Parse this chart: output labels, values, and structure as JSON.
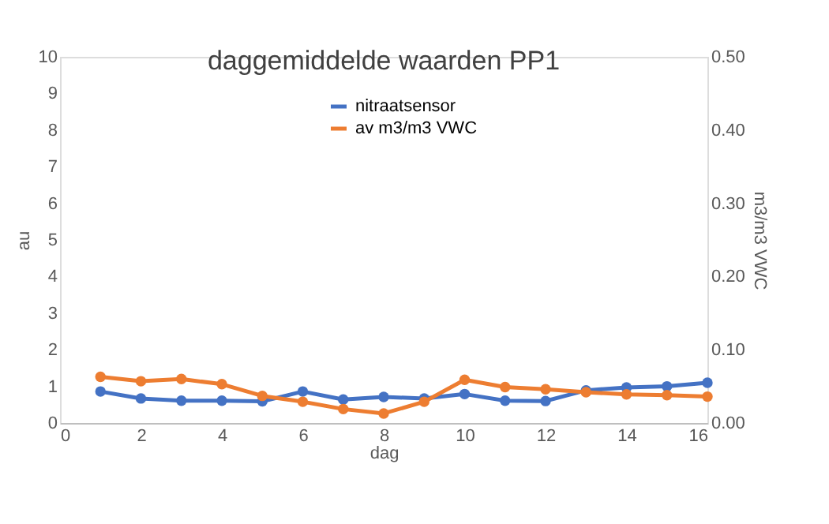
{
  "chart_data": {
    "type": "line",
    "title": "daggemiddelde waarden PP1",
    "xlabel": "dag",
    "ylabel": "au",
    "y2label": "m3/m3 VWC",
    "xlim": [
      0,
      16
    ],
    "xticks": [
      0,
      2,
      4,
      6,
      8,
      10,
      12,
      14,
      16
    ],
    "ylim": [
      0,
      10
    ],
    "yticks": [
      0,
      1,
      2,
      3,
      4,
      5,
      6,
      7,
      8,
      9,
      10
    ],
    "y2lim": [
      0,
      0.5
    ],
    "y2ticks": [
      {
        "value": 0,
        "label": "0.00"
      },
      {
        "value": 0.1,
        "label": "0.10"
      },
      {
        "value": 0.2,
        "label": "0.20"
      },
      {
        "value": 0.3,
        "label": "0.30"
      },
      {
        "value": 0.4,
        "label": "0.40"
      },
      {
        "value": 0.5,
        "label": "0.50"
      }
    ],
    "x": [
      1,
      2,
      3,
      4,
      5,
      6,
      7,
      8,
      9,
      10,
      11,
      12,
      13,
      14,
      15,
      16
    ],
    "series": [
      {
        "name": "nitraatsensor",
        "color": "#4472c4",
        "values": [
          0.86,
          0.67,
          0.61,
          0.61,
          0.59,
          0.86,
          0.64,
          0.71,
          0.67,
          0.79,
          0.61,
          0.6,
          0.89,
          0.97,
          1.0,
          1.1
        ]
      },
      {
        "name": "av m3/m3 VWC",
        "color": "#ed7d31",
        "axis": "y2",
        "values": [
          0.063,
          0.057,
          0.06,
          0.053,
          0.037,
          0.029,
          0.019,
          0.013,
          0.029,
          0.059,
          0.049,
          0.046,
          0.042,
          0.039,
          0.038,
          0.036
        ]
      }
    ],
    "marker": "circle",
    "line_style": "solid",
    "grid": false,
    "legend": "top"
  }
}
